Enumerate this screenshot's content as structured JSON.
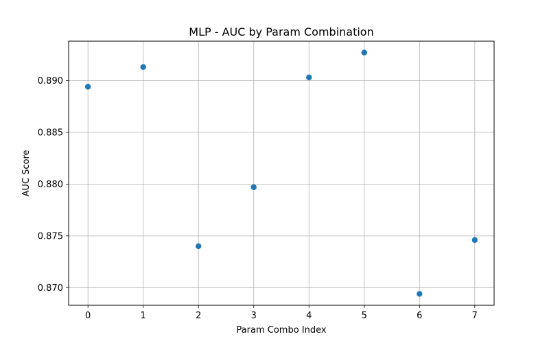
{
  "chart_data": {
    "type": "scatter",
    "title": "MLP - AUC by Param Combination",
    "xlabel": "Param Combo Index",
    "ylabel": "AUC Score",
    "x": [
      0,
      1,
      2,
      3,
      4,
      5,
      6,
      7
    ],
    "y": [
      0.8894,
      0.8913,
      0.874,
      0.8797,
      0.8903,
      0.8927,
      0.8694,
      0.8746
    ],
    "xlim": [
      -0.35,
      7.35
    ],
    "ylim": [
      0.8683,
      0.8938
    ],
    "xticks": [
      0,
      1,
      2,
      3,
      4,
      5,
      6,
      7
    ],
    "xtick_labels": [
      "0",
      "1",
      "2",
      "3",
      "4",
      "5",
      "6",
      "7"
    ],
    "yticks": [
      0.87,
      0.875,
      0.88,
      0.885,
      0.89
    ],
    "ytick_labels": [
      "0.870",
      "0.875",
      "0.880",
      "0.885",
      "0.890"
    ],
    "grid": true,
    "marker_color": "#1f77b4"
  }
}
